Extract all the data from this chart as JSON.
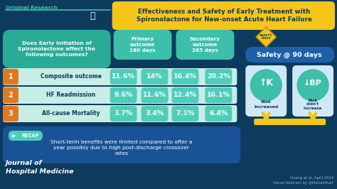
{
  "title": "Effectiveness and Safety of Early Treatment with\nSpironolactone for New-onset Acute Heart Failure",
  "bg_color": "#0d3b5e",
  "teal_header": "#3dbfaa",
  "teal_cell": "#4eceb8",
  "teal_question": "#2aab96",
  "yellow": "#f5c518",
  "orange": "#e07820",
  "blue_safety": "#1e5fa8",
  "blue_recap": "#1a5296",
  "white": "#ffffff",
  "dark_text": "#0d3b5e",
  "outcomes": [
    "Composite outcome",
    "HF Readmission",
    "All-cause Mortality"
  ],
  "primary_early": [
    "11.6%",
    "9.6%",
    "3.7%"
  ],
  "primary_delayed": [
    "14%",
    "11.6%",
    "3.4%"
  ],
  "secondary_early": [
    "16.4%",
    "12.4%",
    "7.1%"
  ],
  "secondary_delayed": [
    "20.2%",
    "16.1%",
    "6.4%"
  ],
  "recap_text": "Short-term benefits were limited compared to after a\nyear possibly due to high post-discharge crossover\nrates",
  "journal": "Journal of\nHospital Medicine",
  "citation": "Huang et al, April 2024\nVisual Abstract by @MahaAlhait"
}
